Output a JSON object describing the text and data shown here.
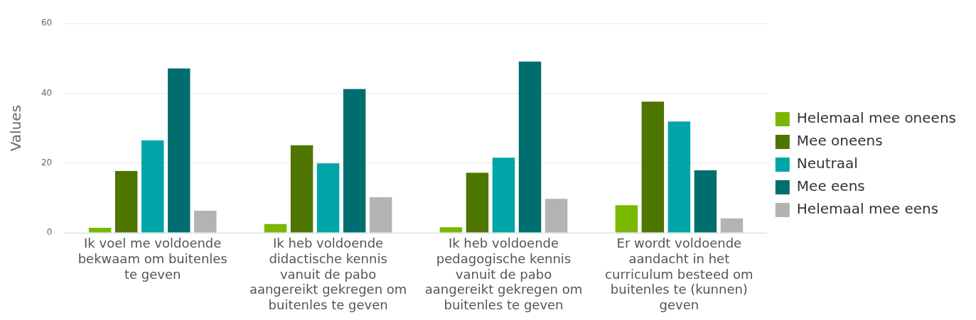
{
  "chart_data": {
    "type": "bar",
    "ylabel": "Values",
    "categories": [
      "Ik voel me voldoende bekwaam om buitenles te geven",
      "Ik heb voldoende didactische kennis vanuit de pabo aangereikt gekregen om buitenles te geven",
      "Ik heb voldoende pedagogische kennis vanuit de pabo aangereikt gekregen om buitenles te geven",
      "Er wordt voldoende aandacht in het curriculum besteed om buitenles te (kunnen) geven"
    ],
    "series": [
      {
        "name": "Helemaal mee oneens",
        "color": "#7ab800",
        "values": [
          1.4,
          2.5,
          1.6,
          7.9
        ]
      },
      {
        "name": "Mee oneens",
        "color": "#4d7500",
        "values": [
          17.7,
          25.1,
          17.2,
          37.6
        ]
      },
      {
        "name": "Neutraal",
        "color": "#00a5a8",
        "values": [
          26.5,
          19.9,
          21.5,
          31.9
        ]
      },
      {
        "name": "Mee eens",
        "color": "#006e6e",
        "values": [
          47.1,
          41.2,
          49.1,
          17.9
        ]
      },
      {
        "name": "Helemaal mee eens",
        "color": "#b3b3b3",
        "values": [
          6.3,
          10.2,
          9.7,
          4.1
        ]
      }
    ],
    "ylim": [
      0,
      60
    ],
    "yticks": [
      0,
      20,
      40,
      60
    ],
    "grid": "y",
    "legend": "right"
  }
}
